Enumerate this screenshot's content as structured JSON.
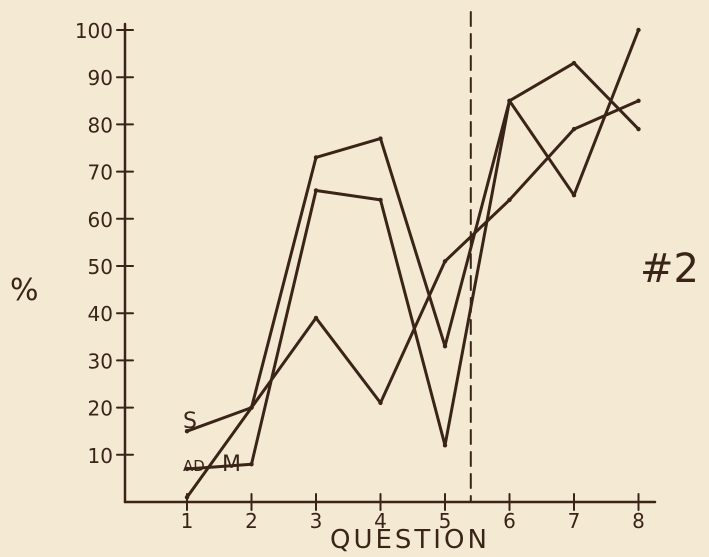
{
  "chart_data": {
    "type": "line",
    "ylabel": "%",
    "xlabel": "QUESTION",
    "x": [
      1,
      2,
      3,
      4,
      5,
      6,
      7,
      8
    ],
    "x_tick_labels": [
      "1",
      "2",
      "3",
      "4",
      "5",
      "6",
      "7",
      "8"
    ],
    "y_tick_labels": [
      "10",
      "20",
      "30",
      "40",
      "50",
      "60",
      "70",
      "80",
      "90",
      "100"
    ],
    "y_ticks": [
      10,
      20,
      30,
      40,
      50,
      60,
      70,
      80,
      90,
      100
    ],
    "ylim": [
      0,
      100
    ],
    "xlim": [
      0.4,
      8.2
    ],
    "vertical_marker_x": 5.4,
    "annotation": "#2",
    "series": [
      {
        "name": "S",
        "values": [
          15,
          20,
          73,
          77,
          33,
          85,
          93,
          79
        ]
      },
      {
        "name": "M",
        "values": [
          7,
          8,
          66,
          64,
          12,
          85,
          65,
          100
        ]
      },
      {
        "name": "AD",
        "values": [
          1,
          20,
          39,
          21,
          51,
          64,
          79,
          85
        ]
      }
    ],
    "grid": false,
    "legend": "inline labels at left"
  }
}
